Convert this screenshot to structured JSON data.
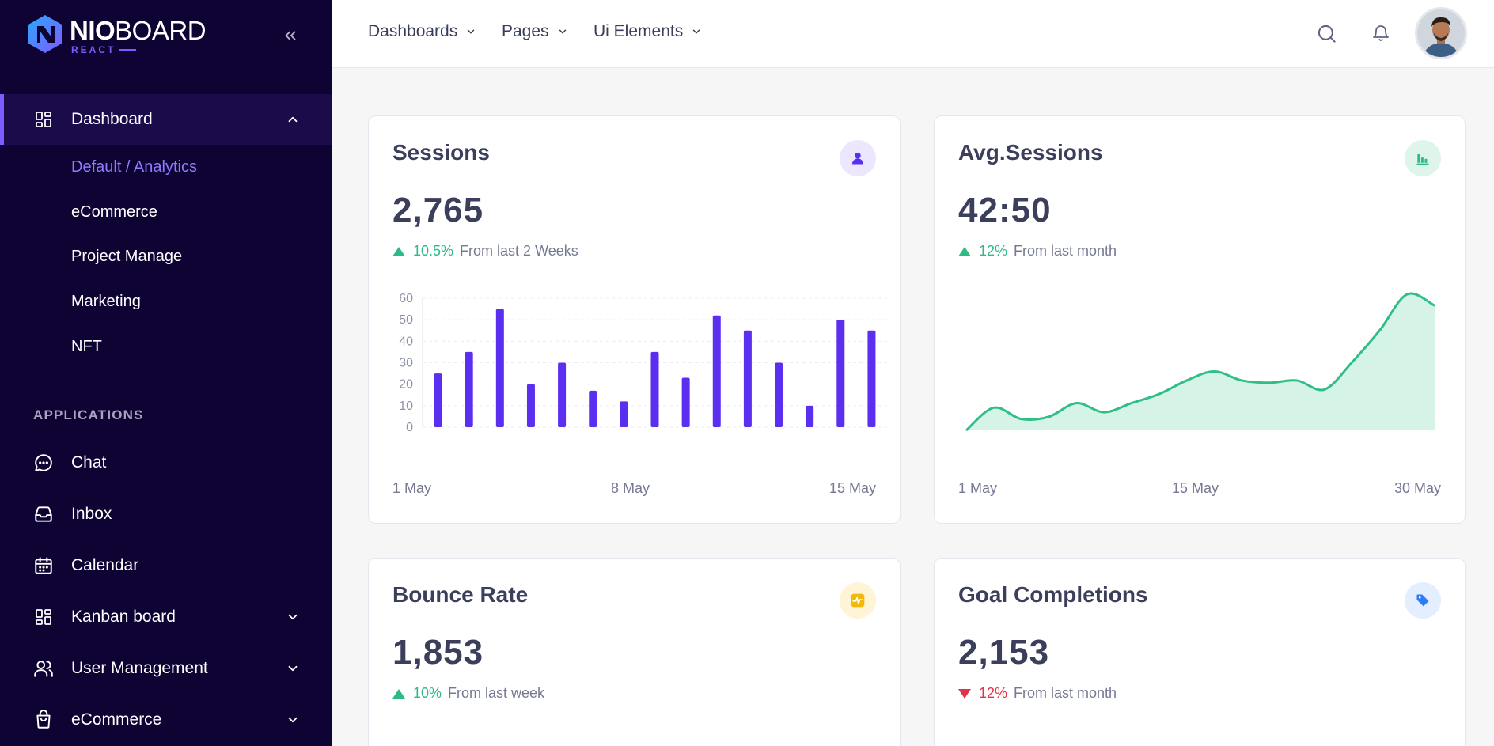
{
  "brand": {
    "name_bold": "NIO",
    "name_rest": "BOARD",
    "sub": "REACT"
  },
  "sidebar": {
    "dashboard": {
      "label": "Dashboard",
      "icon": "dashboard-grid-icon"
    },
    "dashboard_children": [
      {
        "label": "Default / Analytics",
        "current": true
      },
      {
        "label": "eCommerce"
      },
      {
        "label": "Project Manage"
      },
      {
        "label": "Marketing"
      },
      {
        "label": "NFT"
      }
    ],
    "section_title": "APPLICATIONS",
    "apps": [
      {
        "label": "Chat",
        "icon": "chat-icon"
      },
      {
        "label": "Inbox",
        "icon": "inbox-icon"
      },
      {
        "label": "Calendar",
        "icon": "calendar-icon"
      },
      {
        "label": "Kanban board",
        "icon": "kanban-icon"
      },
      {
        "label": "User Management",
        "icon": "users-icon"
      },
      {
        "label": "eCommerce",
        "icon": "shopping-bag-icon"
      }
    ]
  },
  "topbar": {
    "menus": [
      "Dashboards",
      "Pages",
      "Ui Elements"
    ]
  },
  "colors": {
    "sidebar_bg": "#0e0333",
    "accent": "#7d5cff",
    "bar": "#5a2ff0",
    "area_line": "#2fbf86",
    "area_fill": "#d6f3e7",
    "positive": "#2fb985",
    "negative": "#e0344a"
  },
  "cards": {
    "sessions": {
      "title": "Sessions",
      "value": "2,765",
      "trend": "up",
      "pct": "10.5%",
      "note": "From last 2 Weeks",
      "icon": "user-icon"
    },
    "avg_sessions": {
      "title": "Avg.Sessions",
      "value": "42:50",
      "trend": "up",
      "pct": "12%",
      "note": "From last month",
      "icon": "bar-chart-icon"
    },
    "bounce_rate": {
      "title": "Bounce Rate",
      "value": "1,853",
      "trend": "up",
      "pct": "10%",
      "note": "From last week",
      "icon": "activity-icon"
    },
    "goal_completions": {
      "title": "Goal Completions",
      "value": "2,153",
      "trend": "down",
      "pct": "12%",
      "note": "From last month",
      "icon": "tag-icon"
    }
  },
  "chart_data": [
    {
      "type": "bar",
      "x_labels": [
        "1 May",
        "8 May",
        "15 May"
      ],
      "yticks": [
        0,
        10,
        20,
        30,
        40,
        50,
        60
      ],
      "ylim": [
        0,
        60
      ],
      "values": [
        25,
        35,
        55,
        20,
        30,
        17,
        12,
        35,
        23,
        52,
        45,
        30,
        10,
        50,
        45
      ],
      "grid": true
    },
    {
      "type": "area",
      "x_labels": [
        "1 May",
        "15 May",
        "30 May"
      ],
      "values": [
        0,
        10,
        5,
        6,
        12,
        8,
        12,
        16,
        22,
        26,
        22,
        21,
        22,
        18,
        30,
        44,
        60,
        55
      ],
      "grid": false
    }
  ]
}
